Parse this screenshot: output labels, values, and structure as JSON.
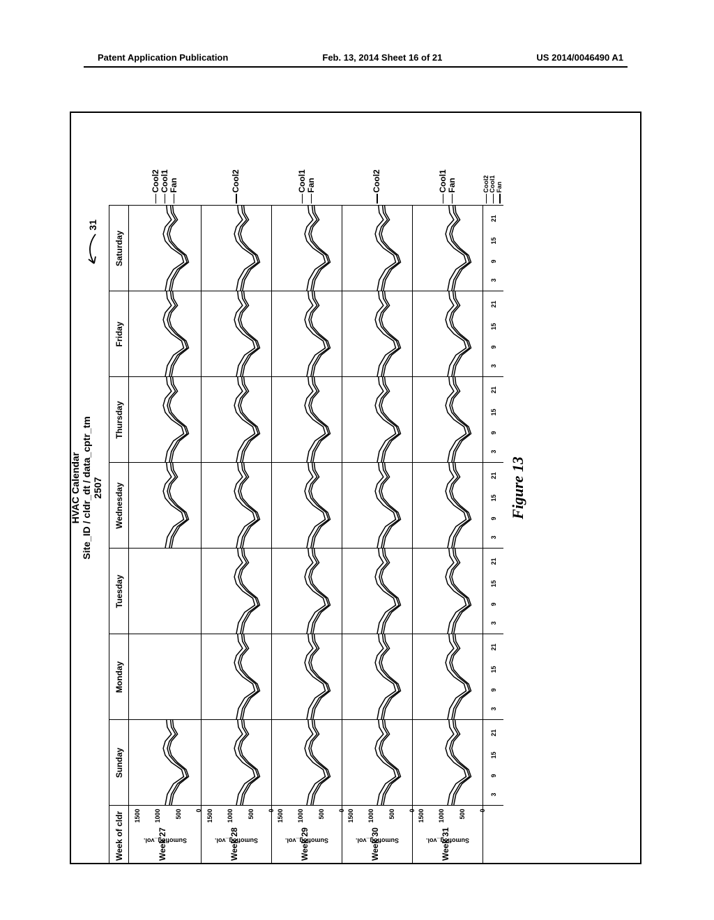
{
  "header": {
    "left": "Patent Application Publication",
    "center": "Feb. 13, 2014  Sheet 16 of 21",
    "right": "US 2014/0046490 A1"
  },
  "chart": {
    "type": "small-multiples-line",
    "title_line1": "HVAC Calendar",
    "title_line2": "Site_ID / cldr_dt / data_cptr_tm",
    "title_line3": "2507",
    "callout_label": "31",
    "corner_label": "Week of cldr",
    "day_headers": [
      "Sunday",
      "Monday",
      "Tuesday",
      "Wednesday",
      "Thursday",
      "Friday",
      "Saturday"
    ],
    "week_labels": [
      "Week 27",
      "Week 28",
      "Week 29",
      "Week 30",
      "Week 31"
    ],
    "y_ticks": [
      0,
      500,
      1000,
      1500
    ],
    "y_label": "Sumoflog_vol.",
    "x_ticks": [
      3,
      9,
      15,
      21
    ],
    "legend_full": [
      "Cool2",
      "Cool1",
      "Fan"
    ],
    "legend_1": [
      "Cool2"
    ],
    "legend_2": [
      "Cool1",
      "Fan"
    ],
    "caption": "Figure 13",
    "colors": {
      "line": "#000000",
      "background": "#ffffff",
      "grid": "#000000"
    },
    "series": {
      "xlim": [
        0,
        24
      ],
      "ylim": [
        0,
        1700
      ],
      "line_width": 1.5,
      "panels": {
        "Week 27": {
          "Sunday": true,
          "Monday": false,
          "Tuesday": false,
          "Wednesday": true,
          "Thursday": true,
          "Friday": true,
          "Saturday": true
        },
        "Week 28": {
          "Sunday": true,
          "Monday": true,
          "Tuesday": true,
          "Wednesday": true,
          "Thursday": true,
          "Friday": true,
          "Saturday": true
        },
        "Week 29": {
          "Sunday": true,
          "Monday": true,
          "Tuesday": true,
          "Wednesday": true,
          "Thursday": true,
          "Friday": true,
          "Saturday": true
        },
        "Week 30": {
          "Sunday": true,
          "Monday": true,
          "Tuesday": true,
          "Wednesday": true,
          "Thursday": true,
          "Friday": true,
          "Saturday": true
        },
        "Week 31": {
          "Sunday": true,
          "Monday": true,
          "Tuesday": true,
          "Wednesday": true,
          "Thursday": true,
          "Friday": true,
          "Saturday": true
        }
      },
      "shape_points_cool2": [
        [
          0,
          850
        ],
        [
          3,
          800
        ],
        [
          6,
          650
        ],
        [
          8,
          400
        ],
        [
          10,
          450
        ],
        [
          12,
          700
        ],
        [
          14,
          850
        ],
        [
          16,
          900
        ],
        [
          18,
          850
        ],
        [
          20,
          700
        ],
        [
          22,
          800
        ],
        [
          24,
          820
        ]
      ],
      "shape_points_cool1": [
        [
          0,
          750
        ],
        [
          3,
          700
        ],
        [
          6,
          550
        ],
        [
          8,
          320
        ],
        [
          10,
          380
        ],
        [
          12,
          600
        ],
        [
          14,
          750
        ],
        [
          16,
          800
        ],
        [
          18,
          750
        ],
        [
          20,
          600
        ],
        [
          22,
          700
        ],
        [
          24,
          720
        ]
      ],
      "shape_points_fan": [
        [
          0,
          700
        ],
        [
          3,
          650
        ],
        [
          6,
          500
        ],
        [
          8,
          280
        ],
        [
          10,
          340
        ],
        [
          12,
          550
        ],
        [
          14,
          700
        ],
        [
          16,
          750
        ],
        [
          18,
          700
        ],
        [
          20,
          550
        ],
        [
          22,
          650
        ],
        [
          24,
          670
        ]
      ]
    }
  }
}
